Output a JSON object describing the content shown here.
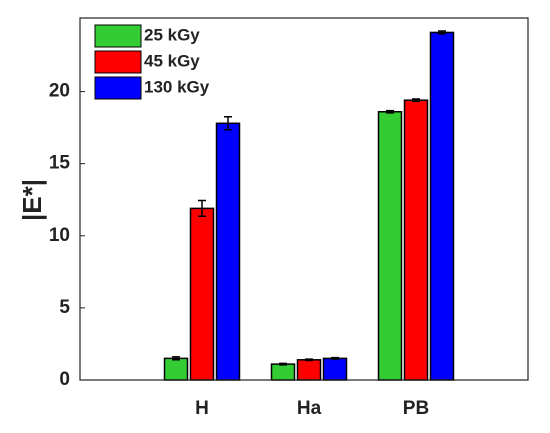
{
  "chart_data": {
    "type": "bar",
    "y_label": "|E*|",
    "categories": [
      "H",
      "Ha",
      "PB"
    ],
    "series": [
      {
        "name": "25 kGy",
        "color": "#33cc33",
        "values": [
          1.5,
          1.1,
          18.6
        ],
        "errors": [
          0.1,
          0.05,
          0.08
        ]
      },
      {
        "name": "45 kGy",
        "color": "#ff0000",
        "values": [
          11.9,
          1.4,
          19.4
        ],
        "errors": [
          0.55,
          0.05,
          0.08
        ]
      },
      {
        "name": "130 kGy",
        "color": "#0000ff",
        "values": [
          17.8,
          1.5,
          24.1
        ],
        "errors": [
          0.45,
          0.05,
          0.1
        ]
      }
    ],
    "ylim": [
      0,
      25.1
    ],
    "yticks": [
      0,
      5,
      10,
      15,
      20
    ],
    "legend": "upper-left"
  }
}
